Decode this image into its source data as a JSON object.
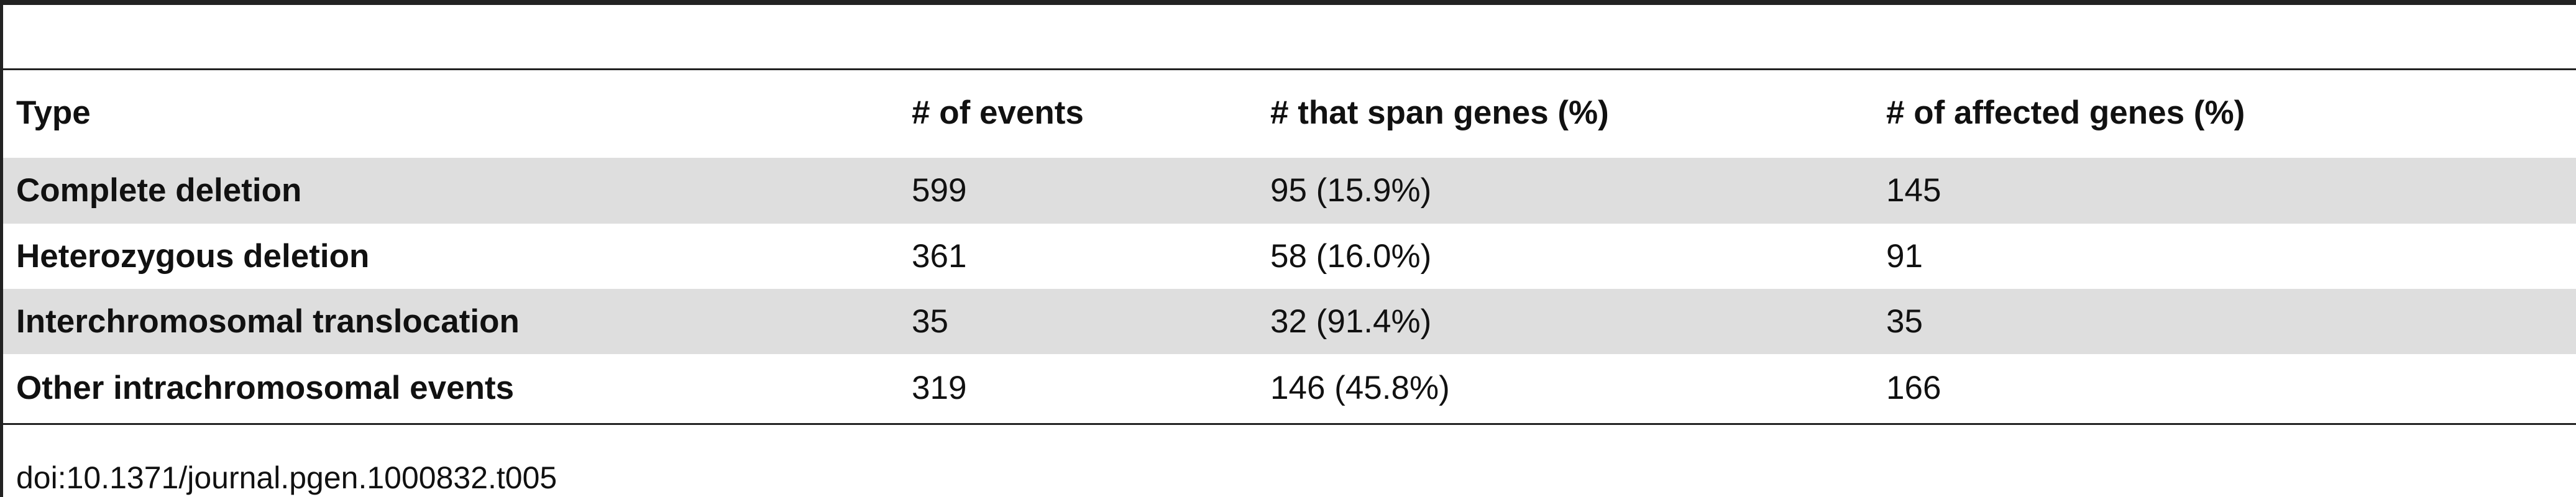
{
  "table": {
    "headers": [
      "Type",
      "# of events",
      "# that span genes (%)",
      "# of affected genes (%)"
    ],
    "rows": [
      [
        "Complete deletion",
        599,
        "95 (15.9%)",
        145
      ],
      [
        "Heterozygous deletion",
        361,
        "58 (16.0%)",
        91
      ],
      [
        "Interchromosomal translocation",
        35,
        "32 (91.4%)",
        35
      ],
      [
        "Other intrachromosomal events",
        319,
        "146 (45.8%)",
        166
      ]
    ]
  },
  "footer": {
    "doi": "doi:10.1371/journal.pgen.1000832.t005"
  }
}
